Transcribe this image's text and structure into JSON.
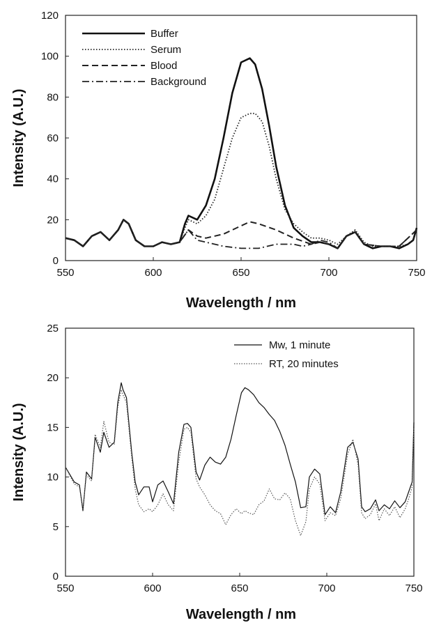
{
  "chart_data": [
    {
      "type": "line",
      "xlabel": "Wavelength / nm",
      "ylabel": "Intensity (A.U.)",
      "xlim": [
        550,
        750
      ],
      "ylim": [
        0,
        120
      ],
      "xticks": [
        550,
        600,
        650,
        700,
        750
      ],
      "yticks": [
        0,
        20,
        40,
        60,
        80,
        100,
        120
      ],
      "grid": false,
      "legend": "top-left",
      "series": [
        {
          "name": "Buffer",
          "style": "solid-thick",
          "color": "#111111",
          "x": [
            550,
            555,
            560,
            565,
            570,
            575,
            580,
            583,
            586,
            590,
            595,
            600,
            605,
            610,
            615,
            618,
            620,
            625,
            630,
            635,
            640,
            645,
            650,
            655,
            658,
            662,
            666,
            670,
            675,
            680,
            685,
            690,
            695,
            700,
            705,
            710,
            715,
            720,
            725,
            730,
            735,
            740,
            745,
            748,
            750
          ],
          "y": [
            11,
            10,
            7,
            12,
            14,
            10,
            15,
            20,
            18,
            10,
            7,
            7,
            9,
            8,
            9,
            18,
            22,
            20,
            27,
            40,
            60,
            82,
            97,
            99,
            96,
            84,
            66,
            46,
            27,
            16,
            12,
            9,
            9,
            8,
            6,
            12,
            14,
            8,
            6,
            7,
            7,
            6,
            8,
            10,
            16
          ]
        },
        {
          "name": "Serum",
          "style": "dotted",
          "color": "#222222",
          "x": [
            550,
            555,
            560,
            565,
            570,
            575,
            580,
            583,
            586,
            590,
            595,
            600,
            605,
            610,
            615,
            618,
            620,
            625,
            630,
            635,
            640,
            645,
            650,
            655,
            658,
            662,
            666,
            670,
            675,
            680,
            685,
            690,
            695,
            700,
            705,
            710,
            715,
            720,
            725,
            730,
            735,
            740,
            745,
            748,
            750
          ],
          "y": [
            11,
            10,
            7,
            12,
            14,
            10,
            15,
            20,
            18,
            10,
            7,
            7,
            9,
            8,
            9,
            16,
            20,
            18,
            22,
            30,
            45,
            60,
            70,
            72,
            72,
            68,
            56,
            40,
            25,
            18,
            14,
            11,
            11,
            10,
            8,
            12,
            15,
            9,
            7,
            7,
            7,
            7,
            8,
            10,
            15
          ]
        },
        {
          "name": "Blood",
          "style": "dashed",
          "color": "#222222",
          "x": [
            550,
            555,
            560,
            565,
            570,
            575,
            580,
            583,
            586,
            590,
            595,
            600,
            605,
            610,
            615,
            620,
            625,
            630,
            640,
            650,
            655,
            660,
            670,
            680,
            690,
            695,
            700,
            705,
            710,
            715,
            720,
            730,
            740,
            750
          ],
          "y": [
            11,
            10,
            7,
            12,
            14,
            10,
            15,
            20,
            18,
            10,
            7,
            7,
            9,
            8,
            9,
            15,
            12,
            11,
            13,
            17,
            19,
            18,
            15,
            11,
            8,
            9,
            8,
            6,
            12,
            14,
            8,
            7,
            7,
            15
          ]
        },
        {
          "name": "Background",
          "style": "dash-dot",
          "color": "#222222",
          "x": [
            550,
            555,
            560,
            565,
            570,
            575,
            580,
            583,
            586,
            590,
            595,
            600,
            605,
            610,
            615,
            620,
            625,
            630,
            640,
            650,
            660,
            670,
            680,
            685,
            690,
            695,
            700,
            705,
            710,
            715,
            720,
            730,
            740,
            750
          ],
          "y": [
            11,
            10,
            7,
            12,
            14,
            10,
            15,
            20,
            18,
            10,
            7,
            7,
            9,
            8,
            9,
            15,
            10,
            9,
            7,
            6,
            6,
            8,
            8,
            7,
            8,
            10,
            9,
            6,
            12,
            14,
            8,
            7,
            7,
            15
          ]
        }
      ]
    },
    {
      "type": "line",
      "xlabel": "Wavelength / nm",
      "ylabel": "Intensity (A.U.)",
      "xlim": [
        550,
        750
      ],
      "ylim": [
        0,
        25
      ],
      "xticks": [
        550,
        600,
        650,
        700,
        750
      ],
      "yticks": [
        0,
        5,
        10,
        15,
        20,
        25
      ],
      "grid": false,
      "legend": "top-right",
      "series": [
        {
          "name": "Mw, 1 minute",
          "style": "solid-thin",
          "color": "#111111",
          "x": [
            550,
            555,
            558,
            560,
            562,
            565,
            567,
            570,
            572,
            575,
            578,
            580,
            582,
            583,
            585,
            588,
            590,
            592,
            595,
            598,
            600,
            603,
            606,
            609,
            612,
            615,
            618,
            620,
            622,
            625,
            627,
            630,
            633,
            636,
            639,
            642,
            645,
            648,
            651,
            653,
            655,
            658,
            661,
            664,
            667,
            670,
            673,
            676,
            679,
            682,
            685,
            688,
            690,
            693,
            696,
            699,
            702,
            705,
            708,
            712,
            715,
            718,
            720,
            722,
            725,
            728,
            730,
            733,
            736,
            739,
            742,
            745,
            747,
            749,
            750
          ],
          "y": [
            11,
            9.5,
            9.2,
            6.6,
            10.5,
            9.8,
            14,
            12.5,
            14.5,
            13,
            13.5,
            17.5,
            19.5,
            18.8,
            18,
            12.5,
            9.5,
            8.2,
            9,
            9,
            7.5,
            9.2,
            9.6,
            8.5,
            7.3,
            12.5,
            15.3,
            15.4,
            15,
            10.5,
            9.7,
            11.2,
            12,
            11.5,
            11.3,
            12,
            13.8,
            16.2,
            18.5,
            19,
            18.8,
            18.3,
            17.5,
            17,
            16.3,
            15.7,
            14.6,
            13.2,
            11.3,
            9.5,
            6.9,
            7,
            10,
            10.8,
            10.3,
            6.2,
            7,
            6.4,
            8.5,
            13,
            13.5,
            11.8,
            7,
            6.5,
            6.8,
            7.7,
            6.6,
            7.2,
            6.8,
            7.6,
            6.9,
            7.5,
            8.5,
            9.5,
            15.5
          ]
        },
        {
          "name": "RT, 20 minutes",
          "style": "dotted-thin",
          "color": "#555555",
          "x": [
            550,
            555,
            558,
            560,
            562,
            565,
            567,
            570,
            572,
            575,
            578,
            580,
            582,
            583,
            585,
            588,
            590,
            592,
            595,
            598,
            600,
            603,
            606,
            609,
            612,
            615,
            618,
            620,
            622,
            625,
            627,
            630,
            633,
            636,
            639,
            642,
            645,
            648,
            651,
            653,
            655,
            658,
            661,
            664,
            667,
            670,
            673,
            676,
            679,
            682,
            685,
            688,
            690,
            693,
            696,
            699,
            702,
            705,
            708,
            712,
            715,
            718,
            720,
            722,
            725,
            728,
            730,
            733,
            736,
            739,
            742,
            745,
            747,
            749,
            750
          ],
          "y": [
            11,
            9.3,
            9,
            6.8,
            10.2,
            9.6,
            14.3,
            13,
            15.6,
            13.5,
            13.3,
            17,
            18.8,
            18.3,
            17.5,
            12,
            8.8,
            7.2,
            6.5,
            6.8,
            6.5,
            7.2,
            8.3,
            7.2,
            6.6,
            11.5,
            14.8,
            15,
            14.5,
            9.8,
            9,
            8.2,
            7.2,
            6.6,
            6.3,
            5.2,
            6.2,
            6.8,
            6.3,
            6.6,
            6.4,
            6.2,
            7.2,
            7.6,
            8.8,
            7.8,
            7.7,
            8.4,
            7.8,
            5.6,
            4.1,
            5.5,
            8.8,
            10,
            9.3,
            5.6,
            6.4,
            6.1,
            7.8,
            12.3,
            13.8,
            11.2,
            6.4,
            5.8,
            6.2,
            7.3,
            5.6,
            6.8,
            6.1,
            7,
            5.9,
            6.8,
            7.8,
            9,
            15
          ]
        }
      ]
    }
  ]
}
